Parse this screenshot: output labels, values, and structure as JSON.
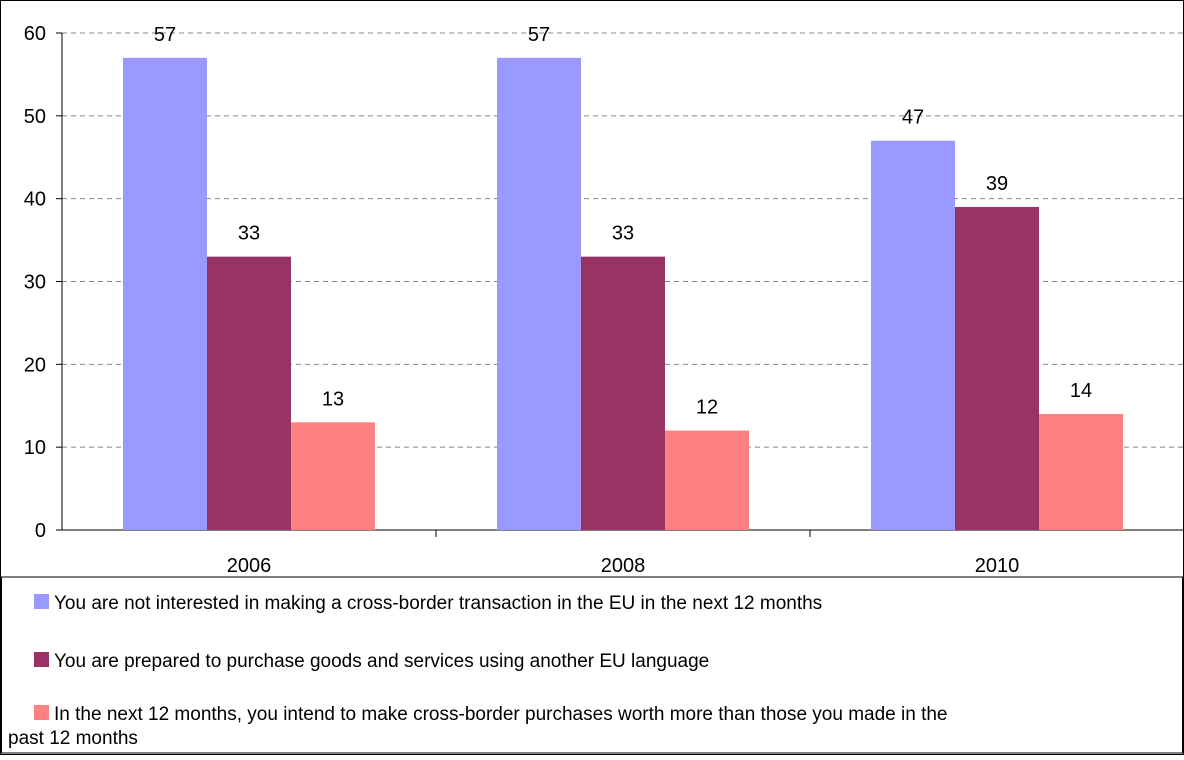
{
  "chart_data": {
    "type": "bar",
    "title": "",
    "xlabel": "",
    "ylabel": "",
    "categories": [
      "2006",
      "2008",
      "2010"
    ],
    "ylim": [
      0,
      60
    ],
    "yticks": [
      "0",
      "10",
      "20",
      "30",
      "40",
      "50",
      "60"
    ],
    "grid": true,
    "legend_position": "bottom",
    "series": [
      {
        "name": "You are not interested in making a cross-border transaction in the EU in the next 12 months",
        "color": "#9999ff",
        "values": [
          57,
          57,
          47
        ],
        "labels": [
          "57",
          "57",
          "47"
        ]
      },
      {
        "name": "You are prepared to purchase goods and services using another EU language",
        "color": "#993366",
        "values": [
          33,
          33,
          39
        ],
        "labels": [
          "33",
          "33",
          "39"
        ]
      },
      {
        "name": "In the next 12 months, you intend to make cross-border purchases worth more than those you made in the past 12 months",
        "color": "#ff8080",
        "values": [
          13,
          12,
          14
        ],
        "labels": [
          "13",
          "12",
          "14"
        ]
      }
    ]
  }
}
